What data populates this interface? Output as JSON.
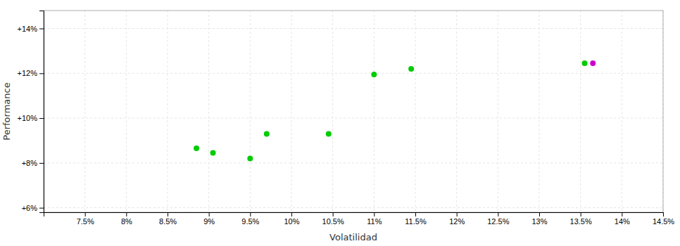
{
  "chart_data": {
    "type": "scatter",
    "xlabel": "Volatilidad",
    "ylabel": "Performance",
    "x": [
      0.0885,
      0.0905,
      0.095,
      0.097,
      0.1045,
      0.11,
      0.1145,
      0.1355,
      0.1365
    ],
    "values": [
      0.0865,
      0.0845,
      0.082,
      0.093,
      0.093,
      0.1195,
      0.122,
      0.1245,
      0.1245
    ],
    "colors": [
      "#00cc00",
      "#00cc00",
      "#00cc00",
      "#00cc00",
      "#00cc00",
      "#00cc00",
      "#00cc00",
      "#00cc00",
      "#cc00cc"
    ],
    "xlim": [
      0.07,
      0.145
    ],
    "ylim": [
      0.058,
      0.148
    ],
    "xticks": [
      {
        "value": 0.075,
        "label": "7.5%"
      },
      {
        "value": 0.08,
        "label": "8%"
      },
      {
        "value": 0.085,
        "label": "8.5%"
      },
      {
        "value": 0.09,
        "label": "9%"
      },
      {
        "value": 0.095,
        "label": "9.5%"
      },
      {
        "value": 0.1,
        "label": "10%"
      },
      {
        "value": 0.105,
        "label": "10.5%"
      },
      {
        "value": 0.11,
        "label": "11%"
      },
      {
        "value": 0.115,
        "label": "11.5%"
      },
      {
        "value": 0.12,
        "label": "12%"
      },
      {
        "value": 0.125,
        "label": "12.5%"
      },
      {
        "value": 0.13,
        "label": "13%"
      },
      {
        "value": 0.135,
        "label": "13.5%"
      },
      {
        "value": 0.14,
        "label": "14%"
      },
      {
        "value": 0.145,
        "label": "14.5%"
      }
    ],
    "yticks": [
      {
        "value": 0.06,
        "label": "+6%"
      },
      {
        "value": 0.08,
        "label": "+8%"
      },
      {
        "value": 0.1,
        "label": "+10%"
      },
      {
        "value": 0.12,
        "label": "+12%"
      },
      {
        "value": 0.14,
        "label": "+14%"
      }
    ],
    "grid": true
  }
}
